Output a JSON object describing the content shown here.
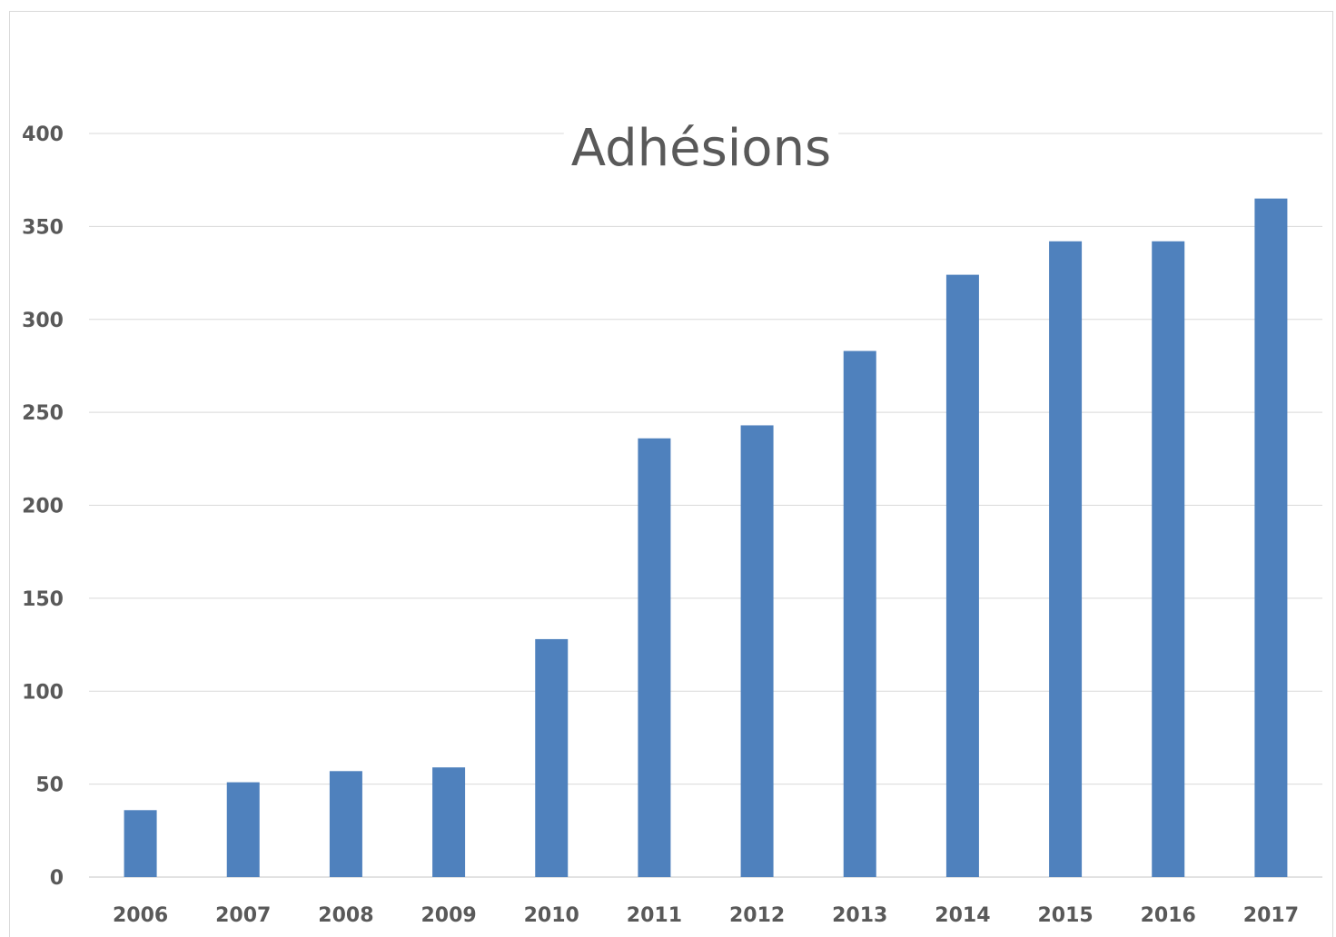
{
  "chart_data": {
    "type": "bar",
    "title": "Adhésions",
    "xlabel": "",
    "ylabel": "",
    "categories": [
      "2006",
      "2007",
      "2008",
      "2009",
      "2010",
      "2011",
      "2012",
      "2013",
      "2014",
      "2015",
      "2016",
      "2017"
    ],
    "values": [
      36,
      51,
      57,
      59,
      128,
      236,
      243,
      283,
      324,
      342,
      342,
      365
    ],
    "ylim": [
      0,
      400
    ],
    "yticks": [
      "0",
      "50",
      "100",
      "150",
      "200",
      "250",
      "300",
      "350",
      "400"
    ],
    "grid": true,
    "legend": "none",
    "bar_color": "#4F81BD",
    "grid_color": "#d9d9d9",
    "text_color": "#595959"
  }
}
